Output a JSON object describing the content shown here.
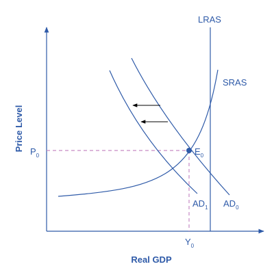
{
  "diagram": {
    "axes": {
      "y_title": "Price Level",
      "x_title": "Real GDP"
    },
    "curves": {
      "lras": "LRAS",
      "sras": "SRAS",
      "ad0": {
        "main": "AD",
        "sub": "0"
      },
      "ad1": {
        "main": "AD",
        "sub": "1"
      }
    },
    "equilibrium": {
      "price": {
        "main": "P",
        "sub": "0"
      },
      "output": {
        "main": "Y",
        "sub": "0"
      },
      "point": {
        "main": "E",
        "sub": "0"
      }
    },
    "colors": {
      "lines": "#2e5aa8",
      "dashed_guides": "#c68ac4",
      "arrows": "#000000",
      "text": "#2e5aa8"
    }
  }
}
